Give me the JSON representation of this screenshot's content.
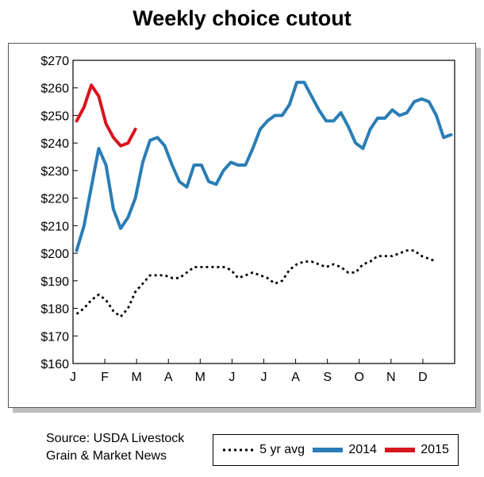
{
  "chart_data": {
    "type": "line",
    "title": "Weekly choice cutout",
    "xlabel": "",
    "ylabel": "",
    "ylim": [
      160,
      270
    ],
    "yticks": [
      "$160",
      "$170",
      "$180",
      "$190",
      "$200",
      "$210",
      "$220",
      "$230",
      "$240",
      "$250",
      "$260",
      "$270"
    ],
    "months": [
      "J",
      "F",
      "M",
      "A",
      "M",
      "J",
      "J",
      "A",
      "S",
      "O",
      "N",
      "D"
    ],
    "grid": false,
    "series": [
      {
        "name": "5 yr avg",
        "color": "#000000",
        "style": "dotted",
        "values": [
          178,
          180,
          183,
          185,
          183,
          179,
          177,
          180,
          186,
          189,
          192,
          192,
          192,
          191,
          191,
          193,
          195,
          195,
          195,
          195,
          195,
          194,
          191,
          192,
          193,
          192,
          191,
          189,
          190,
          194,
          196,
          197,
          197,
          196,
          195,
          196,
          195,
          193,
          193,
          196,
          197,
          199,
          199,
          199,
          200,
          201,
          201,
          199,
          198,
          197
        ]
      },
      {
        "name": "2014",
        "color": "#2a7db5",
        "style": "solid",
        "values": [
          201,
          210,
          224,
          238,
          232,
          216,
          209,
          213,
          220,
          233,
          241,
          242,
          239,
          232,
          226,
          224,
          232,
          232,
          226,
          225,
          230,
          233,
          232,
          232,
          238,
          245,
          248,
          250,
          250,
          254,
          262,
          262,
          257,
          252,
          248,
          248,
          251,
          246,
          240,
          238,
          245,
          249,
          249,
          252,
          250,
          251,
          255,
          256,
          255,
          250,
          242,
          243
        ]
      },
      {
        "name": "2015",
        "color": "#d8141d",
        "style": "solid",
        "values": [
          248,
          253,
          261,
          257,
          247,
          242,
          239,
          240,
          245
        ]
      }
    ]
  },
  "source": {
    "line1": "Source: USDA Livestock",
    "line2": "Grain & Market News"
  },
  "legend": {
    "items": [
      {
        "label": "5 yr avg"
      },
      {
        "label": "2014"
      },
      {
        "label": "2015"
      }
    ]
  }
}
